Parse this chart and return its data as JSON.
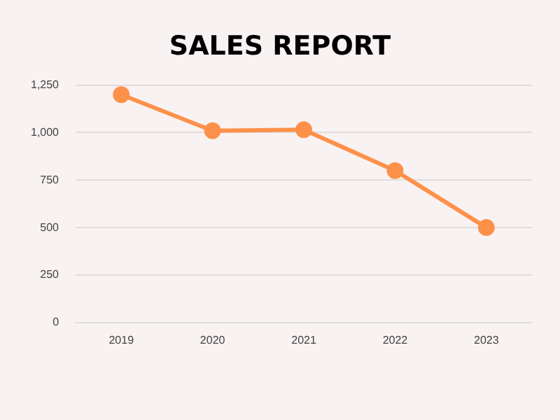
{
  "chart_data": {
    "type": "line",
    "title": "SALES REPORT",
    "categories": [
      "2019",
      "2020",
      "2021",
      "2022",
      "2023"
    ],
    "series": [
      {
        "color": "#fe914a",
        "values": [
          1200,
          1010,
          1015,
          800,
          500
        ]
      }
    ],
    "ylim": [
      0,
      1250
    ],
    "yticks": [
      {
        "value": 0,
        "label": "0"
      },
      {
        "value": 250,
        "label": "250"
      },
      {
        "value": 500,
        "label": "500"
      },
      {
        "value": 750,
        "label": "750"
      },
      {
        "value": 1000,
        "label": "1,000"
      },
      {
        "value": 1250,
        "label": "1,250"
      }
    ],
    "grid": "y",
    "legend": false,
    "marker": "circle",
    "line_style": "solid"
  }
}
